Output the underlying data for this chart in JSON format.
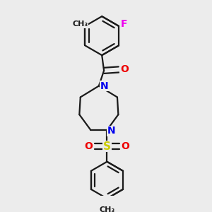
{
  "background_color": "#ececec",
  "line_color": "#1a1a1a",
  "line_width": 1.6,
  "atom_colors": {
    "F": "#ee00ee",
    "N": "#0000ee",
    "O": "#ee0000",
    "S": "#cccc00",
    "C": "#1a1a1a"
  },
  "font_size": 9,
  "title": ""
}
